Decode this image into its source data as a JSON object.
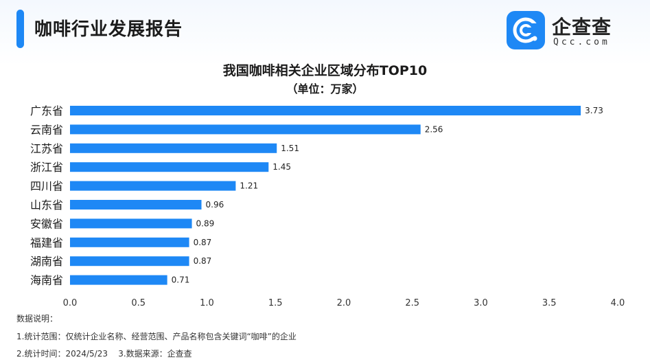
{
  "header": {
    "title": "咖啡行业发展报告"
  },
  "logo": {
    "name": "企查查",
    "sub": "Qcc.com",
    "mark_color": "#1e88f5"
  },
  "chart_data": {
    "type": "bar",
    "orientation": "horizontal",
    "title": "我国咖啡相关企业区域分布TOP10",
    "subtitle": "（单位：万家）",
    "categories": [
      "广东省",
      "云南省",
      "江苏省",
      "浙江省",
      "四川省",
      "山东省",
      "安徽省",
      "福建省",
      "湖南省",
      "海南省"
    ],
    "values": [
      3.73,
      2.56,
      1.51,
      1.45,
      1.21,
      0.96,
      0.89,
      0.87,
      0.87,
      0.71
    ],
    "value_labels": [
      "3.73",
      "2.56",
      "1.51",
      "1.45",
      "1.21",
      "0.96",
      "0.89",
      "0.87",
      "0.87",
      "0.71"
    ],
    "xlim": [
      0,
      4.0
    ],
    "xticks": [
      "0.0",
      "0.5",
      "1.0",
      "1.5",
      "2.0",
      "2.5",
      "3.0",
      "3.5",
      "4.0"
    ],
    "bar_color": "#1e88f5",
    "grid": false,
    "legend": "none"
  },
  "notes": {
    "heading": "数据说明：",
    "line1": "1.统计范围：仅统计企业名称、经营范围、产品名称包含关键词“咖啡”的企业",
    "line2": "2.统计时间：2024/5/23    3.数据来源：企查查"
  }
}
